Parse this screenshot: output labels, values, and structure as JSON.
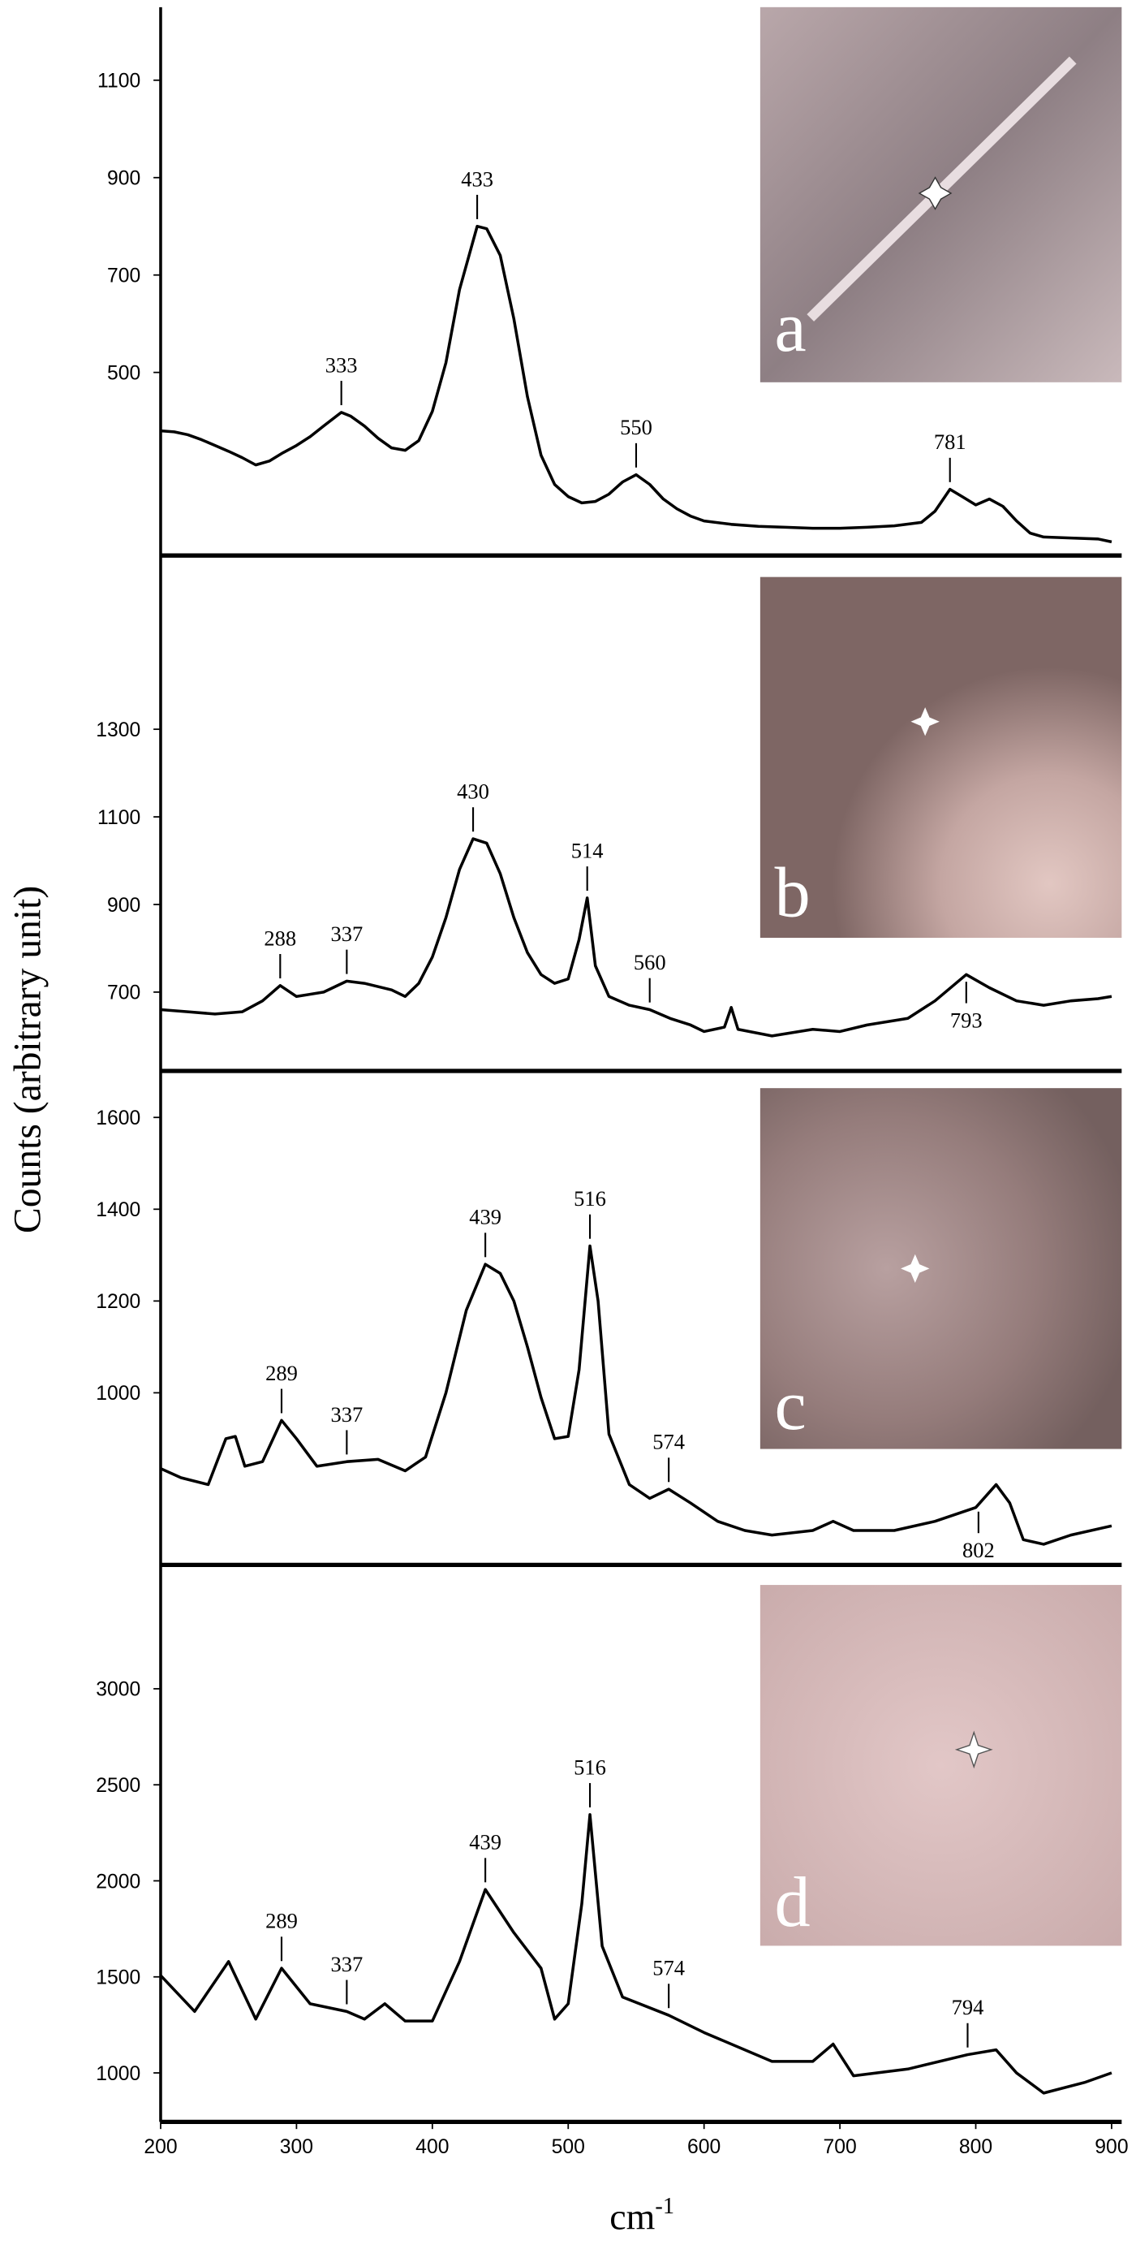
{
  "y_axis_label": "Counts (arbitrary unit)",
  "x_axis_label": {
    "text": "cm",
    "superscript": "-1"
  },
  "chart_data": [
    {
      "type": "line",
      "panel_label": "a",
      "color": "#000000",
      "xlim": [
        200,
        900
      ],
      "ylim": [
        124,
        1250
      ],
      "yticks": [
        500,
        700,
        900,
        1100
      ],
      "x": [
        200,
        210,
        220,
        230,
        240,
        250,
        260,
        270,
        280,
        290,
        300,
        310,
        320,
        333,
        340,
        350,
        360,
        370,
        380,
        390,
        400,
        410,
        420,
        433,
        440,
        450,
        460,
        470,
        480,
        490,
        500,
        510,
        520,
        530,
        540,
        550,
        560,
        570,
        580,
        590,
        600,
        620,
        640,
        660,
        680,
        700,
        720,
        740,
        760,
        770,
        781,
        790,
        800,
        810,
        820,
        830,
        840,
        850,
        870,
        890,
        900
      ],
      "values": [
        380,
        378,
        372,
        362,
        350,
        338,
        325,
        310,
        318,
        335,
        350,
        368,
        390,
        418,
        410,
        390,
        365,
        345,
        340,
        360,
        420,
        520,
        670,
        800,
        795,
        740,
        610,
        450,
        330,
        270,
        245,
        232,
        235,
        250,
        275,
        290,
        270,
        240,
        220,
        205,
        195,
        188,
        184,
        182,
        180,
        180,
        182,
        185,
        192,
        215,
        260,
        245,
        228,
        240,
        225,
        195,
        170,
        162,
        160,
        158,
        152
      ],
      "peaks": [
        {
          "x": 333,
          "side": "above"
        },
        {
          "x": 433,
          "side": "above"
        },
        {
          "x": 550,
          "side": "above"
        },
        {
          "x": 781,
          "side": "above"
        }
      ]
    },
    {
      "type": "line",
      "panel_label": "b",
      "color": "#000000",
      "xlim": [
        200,
        900
      ],
      "ylim": [
        520,
        1690
      ],
      "yticks": [
        700,
        900,
        1100,
        1300
      ],
      "x": [
        200,
        220,
        240,
        260,
        275,
        288,
        300,
        320,
        337,
        350,
        370,
        380,
        390,
        400,
        410,
        420,
        430,
        440,
        450,
        460,
        470,
        480,
        490,
        500,
        508,
        514,
        520,
        530,
        545,
        560,
        575,
        590,
        600,
        615,
        620,
        625,
        650,
        680,
        700,
        720,
        750,
        770,
        793,
        810,
        830,
        850,
        870,
        890,
        900
      ],
      "values": [
        660,
        655,
        650,
        655,
        680,
        715,
        690,
        700,
        725,
        720,
        705,
        690,
        720,
        780,
        870,
        980,
        1050,
        1040,
        970,
        870,
        790,
        740,
        720,
        730,
        820,
        915,
        760,
        690,
        670,
        660,
        640,
        625,
        610,
        620,
        665,
        615,
        600,
        615,
        610,
        625,
        640,
        680,
        740,
        710,
        680,
        670,
        680,
        685,
        690
      ],
      "peaks": [
        {
          "x": 288,
          "side": "above"
        },
        {
          "x": 337,
          "side": "above"
        },
        {
          "x": 430,
          "side": "above"
        },
        {
          "x": 514,
          "side": "above"
        },
        {
          "x": 560,
          "side": "above"
        },
        {
          "x": 793,
          "side": "below"
        }
      ]
    },
    {
      "type": "line",
      "panel_label": "c",
      "color": "#000000",
      "xlim": [
        200,
        900
      ],
      "ylim": [
        625,
        1695
      ],
      "yticks": [
        1000,
        1200,
        1400,
        1600
      ],
      "x": [
        200,
        215,
        235,
        248,
        255,
        262,
        275,
        289,
        300,
        315,
        337,
        360,
        380,
        395,
        410,
        425,
        439,
        450,
        460,
        470,
        480,
        490,
        500,
        508,
        516,
        522,
        530,
        545,
        560,
        574,
        590,
        610,
        630,
        650,
        680,
        695,
        710,
        740,
        770,
        800,
        815,
        825,
        835,
        850,
        870,
        900
      ],
      "values": [
        835,
        815,
        800,
        900,
        905,
        840,
        850,
        940,
        900,
        840,
        850,
        855,
        830,
        860,
        1000,
        1180,
        1280,
        1260,
        1200,
        1100,
        990,
        900,
        905,
        1050,
        1320,
        1200,
        910,
        800,
        770,
        790,
        760,
        720,
        700,
        690,
        700,
        720,
        700,
        700,
        720,
        750,
        800,
        760,
        680,
        670,
        690,
        710
      ],
      "peaks": [
        {
          "x": 289,
          "side": "above"
        },
        {
          "x": 337,
          "side": "above"
        },
        {
          "x": 439,
          "side": "above"
        },
        {
          "x": 516,
          "side": "above"
        },
        {
          "x": 574,
          "side": "above"
        },
        {
          "x": 802,
          "side": "below"
        }
      ]
    },
    {
      "type": "line",
      "panel_label": "d",
      "color": "#000000",
      "xlim": [
        200,
        900
      ],
      "ylim": [
        745,
        3630
      ],
      "yticks": [
        1000,
        1500,
        2000,
        2500,
        3000
      ],
      "xticks": [
        200,
        300,
        400,
        500,
        600,
        700,
        800,
        900
      ],
      "x": [
        200,
        225,
        250,
        270,
        289,
        310,
        337,
        350,
        365,
        380,
        400,
        420,
        439,
        460,
        480,
        490,
        500,
        510,
        516,
        525,
        540,
        574,
        600,
        650,
        680,
        695,
        710,
        750,
        794,
        815,
        830,
        850,
        880,
        900
      ],
      "values": [
        1507,
        1320,
        1580,
        1280,
        1545,
        1360,
        1320,
        1280,
        1360,
        1270,
        1270,
        1580,
        1955,
        1730,
        1545,
        1280,
        1360,
        1880,
        2345,
        1660,
        1395,
        1300,
        1210,
        1060,
        1060,
        1150,
        985,
        1020,
        1095,
        1120,
        1000,
        895,
        950,
        1000
      ],
      "peaks": [
        {
          "x": 289,
          "side": "above"
        },
        {
          "x": 337,
          "side": "above"
        },
        {
          "x": 439,
          "side": "above"
        },
        {
          "x": 516,
          "side": "above"
        },
        {
          "x": 574,
          "side": "above"
        },
        {
          "x": 794,
          "side": "above"
        }
      ]
    }
  ]
}
